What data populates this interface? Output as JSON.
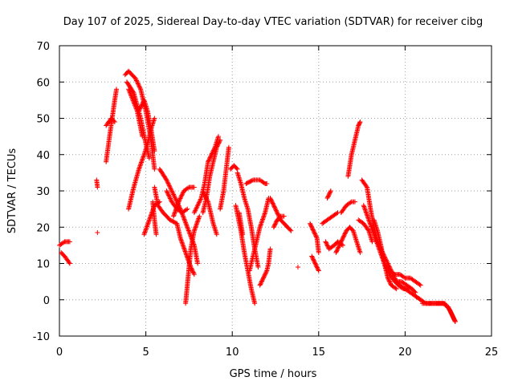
{
  "chart_data": {
    "type": "scatter",
    "title": "Day 107 of 2025, Sidereal Day-to-day VTEC variation (SDTVAR) for receiver cibg",
    "xlabel": "GPS time / hours",
    "ylabel": "SDTVAR / TECUs",
    "xlim": [
      0,
      25
    ],
    "ylim": [
      -10,
      70
    ],
    "xticks": [
      0,
      5,
      10,
      15,
      20,
      25
    ],
    "yticks": [
      -10,
      0,
      10,
      20,
      30,
      40,
      50,
      60,
      70
    ],
    "xtick_labels": [
      "0",
      "5",
      "10",
      "15",
      "20",
      "25"
    ],
    "ytick_labels": [
      "-10",
      "0",
      "10",
      "20",
      "30",
      "40",
      "50",
      "60",
      "70"
    ],
    "grid": true,
    "marker": "+",
    "series": [
      {
        "name": "SDTVAR",
        "color": "#ff0000",
        "tracks": [
          [
            [
              0.0,
              15
            ],
            [
              0.3,
              16
            ],
            [
              0.6,
              16
            ]
          ],
          [
            [
              0.1,
              13
            ],
            [
              0.3,
              12
            ],
            [
              0.6,
              10
            ]
          ],
          [
            [
              2.15,
              33
            ],
            [
              2.2,
              31
            ]
          ],
          [
            [
              2.2,
              18.5
            ]
          ],
          [
            [
              2.7,
              38
            ],
            [
              2.9,
              45
            ],
            [
              3.05,
              50
            ],
            [
              3.2,
              55
            ],
            [
              3.3,
              58
            ]
          ],
          [
            [
              2.7,
              48
            ],
            [
              3.0,
              50
            ],
            [
              3.2,
              49
            ]
          ],
          [
            [
              3.8,
              62
            ],
            [
              4.0,
              63
            ],
            [
              4.4,
              61
            ],
            [
              4.7,
              58
            ],
            [
              5.0,
              52
            ],
            [
              5.3,
              44
            ],
            [
              5.5,
              36
            ]
          ],
          [
            [
              3.9,
              60
            ],
            [
              4.3,
              57
            ],
            [
              4.7,
              50
            ],
            [
              5.0,
              43
            ],
            [
              5.2,
              39
            ]
          ],
          [
            [
              4.0,
              58
            ],
            [
              4.5,
              52
            ],
            [
              4.8,
              45
            ]
          ],
          [
            [
              4.6,
              52
            ],
            [
              4.9,
              55
            ],
            [
              5.1,
              52
            ],
            [
              5.3,
              47
            ],
            [
              5.5,
              41
            ]
          ],
          [
            [
              4.0,
              25
            ],
            [
              4.3,
              31
            ],
            [
              4.6,
              36
            ],
            [
              4.9,
              40
            ],
            [
              5.1,
              43
            ],
            [
              5.3,
              47
            ],
            [
              5.5,
              50
            ]
          ],
          [
            [
              4.9,
              18
            ],
            [
              5.2,
              22
            ],
            [
              5.5,
              26
            ],
            [
              5.8,
              27
            ]
          ],
          [
            [
              5.4,
              27
            ],
            [
              5.5,
              22
            ],
            [
              5.6,
              18
            ]
          ],
          [
            [
              5.5,
              31
            ],
            [
              5.7,
              26
            ],
            [
              6.0,
              24
            ],
            [
              6.4,
              22
            ],
            [
              6.8,
              21
            ],
            [
              7.0,
              17
            ],
            [
              7.3,
              13
            ],
            [
              7.6,
              9
            ],
            [
              7.8,
              7
            ]
          ],
          [
            [
              5.8,
              36
            ],
            [
              6.2,
              33
            ],
            [
              6.6,
              29
            ],
            [
              7.0,
              25
            ],
            [
              7.4,
              20
            ],
            [
              7.8,
              15
            ],
            [
              8.0,
              10
            ]
          ],
          [
            [
              6.2,
              30
            ],
            [
              6.5,
              27
            ],
            [
              6.8,
              25
            ],
            [
              7.1,
              24
            ],
            [
              7.4,
              25
            ]
          ],
          [
            [
              6.6,
              23
            ],
            [
              6.9,
              27
            ],
            [
              7.2,
              30
            ],
            [
              7.5,
              31
            ],
            [
              7.8,
              31
            ]
          ],
          [
            [
              7.3,
              -1
            ],
            [
              7.4,
              4
            ],
            [
              7.5,
              9
            ],
            [
              7.6,
              14
            ],
            [
              7.8,
              19
            ],
            [
              8.1,
              23
            ]
          ],
          [
            [
              7.8,
              24
            ],
            [
              8.2,
              28
            ],
            [
              8.4,
              32
            ],
            [
              8.6,
              38
            ],
            [
              8.8,
              40
            ],
            [
              9.0,
              42
            ],
            [
              9.2,
              45
            ]
          ],
          [
            [
              8.3,
              24
            ],
            [
              8.5,
              28
            ],
            [
              8.7,
              34
            ],
            [
              8.9,
              38
            ],
            [
              9.1,
              42
            ],
            [
              9.3,
              44
            ]
          ],
          [
            [
              8.3,
              30
            ],
            [
              8.6,
              27
            ],
            [
              8.9,
              21
            ],
            [
              9.1,
              18
            ]
          ],
          [
            [
              9.3,
              25
            ],
            [
              9.5,
              30
            ],
            [
              9.7,
              38
            ],
            [
              9.8,
              42
            ]
          ],
          [
            [
              9.9,
              36
            ],
            [
              10.1,
              37
            ],
            [
              10.3,
              36
            ]
          ],
          [
            [
              10.2,
              26
            ],
            [
              10.5,
              19
            ],
            [
              10.7,
              13
            ],
            [
              10.9,
              8
            ],
            [
              11.1,
              3
            ],
            [
              11.3,
              -1
            ]
          ],
          [
            [
              10.3,
              35
            ],
            [
              10.5,
              32
            ],
            [
              10.7,
              28
            ],
            [
              10.9,
              25
            ],
            [
              11.1,
              20
            ],
            [
              11.3,
              14
            ],
            [
              11.5,
              9
            ]
          ],
          [
            [
              10.4,
              24
            ],
            [
              10.5,
              21
            ],
            [
              10.6,
              18
            ]
          ],
          [
            [
              11.0,
              8
            ],
            [
              11.2,
              12
            ],
            [
              11.4,
              16
            ],
            [
              11.6,
              20
            ],
            [
              11.9,
              24
            ],
            [
              12.1,
              28
            ]
          ],
          [
            [
              10.8,
              32
            ],
            [
              11.2,
              33
            ],
            [
              11.6,
              33
            ],
            [
              11.9,
              32
            ],
            [
              12.0,
              32
            ]
          ],
          [
            [
              11.6,
              4
            ],
            [
              11.8,
              6
            ],
            [
              12.0,
              8
            ],
            [
              12.1,
              10
            ],
            [
              12.2,
              14
            ]
          ],
          [
            [
              12.2,
              28
            ],
            [
              12.4,
              26
            ],
            [
              12.6,
              24
            ],
            [
              12.8,
              22
            ],
            [
              13.0,
              21
            ],
            [
              13.2,
              20
            ],
            [
              13.4,
              19
            ]
          ],
          [
            [
              12.4,
              20
            ],
            [
              12.6,
              22
            ],
            [
              12.8,
              23
            ],
            [
              13.0,
              23
            ]
          ],
          [
            [
              13.8,
              9
            ]
          ],
          [
            [
              14.5,
              21
            ],
            [
              14.7,
              19
            ],
            [
              14.9,
              17
            ],
            [
              15.0,
              13
            ]
          ],
          [
            [
              14.6,
              12
            ],
            [
              14.8,
              10
            ],
            [
              15.0,
              8
            ]
          ],
          [
            [
              15.2,
              21
            ],
            [
              15.5,
              22
            ],
            [
              15.8,
              23
            ],
            [
              16.1,
              24
            ]
          ],
          [
            [
              15.5,
              28
            ],
            [
              15.7,
              30
            ]
          ],
          [
            [
              15.4,
              16
            ],
            [
              15.6,
              14
            ],
            [
              15.9,
              15
            ],
            [
              16.1,
              16
            ],
            [
              16.4,
              15
            ]
          ],
          [
            [
              16.0,
              13
            ],
            [
              16.2,
              15
            ],
            [
              16.4,
              17
            ],
            [
              16.6,
              19
            ],
            [
              16.8,
              20
            ],
            [
              17.0,
              19
            ],
            [
              17.2,
              16
            ],
            [
              17.4,
              13
            ]
          ],
          [
            [
              16.3,
              24
            ],
            [
              16.6,
              26
            ],
            [
              16.9,
              27
            ],
            [
              17.1,
              27
            ]
          ],
          [
            [
              16.7,
              34
            ],
            [
              16.8,
              37
            ],
            [
              16.9,
              40
            ],
            [
              17.0,
              42
            ],
            [
              17.1,
              44
            ],
            [
              17.2,
              46
            ],
            [
              17.3,
              48
            ],
            [
              17.4,
              49
            ]
          ],
          [
            [
              17.3,
              22
            ],
            [
              17.6,
              21
            ],
            [
              17.9,
              19
            ],
            [
              18.1,
              16
            ]
          ],
          [
            [
              17.5,
              33
            ],
            [
              17.8,
              31
            ],
            [
              18.0,
              25
            ],
            [
              18.2,
              20
            ],
            [
              18.4,
              16
            ],
            [
              18.7,
              13
            ],
            [
              19.0,
              10
            ],
            [
              19.3,
              7
            ],
            [
              19.6,
              4
            ],
            [
              19.9,
              3
            ],
            [
              20.2,
              3
            ]
          ],
          [
            [
              17.6,
              26
            ],
            [
              17.9,
              22
            ],
            [
              18.2,
              18
            ],
            [
              18.5,
              14
            ],
            [
              18.8,
              10
            ],
            [
              19.1,
              7
            ],
            [
              19.4,
              5
            ],
            [
              19.7,
              4
            ],
            [
              20.0,
              3
            ],
            [
              20.3,
              2
            ],
            [
              20.6,
              1
            ],
            [
              20.9,
              0
            ]
          ],
          [
            [
              18.2,
              22
            ],
            [
              18.4,
              19
            ],
            [
              18.6,
              15
            ],
            [
              18.8,
              10
            ],
            [
              19.0,
              6
            ],
            [
              19.2,
              4
            ],
            [
              19.5,
              3
            ]
          ],
          [
            [
              18.8,
              10
            ],
            [
              19.1,
              8
            ],
            [
              19.4,
              7
            ],
            [
              19.7,
              7
            ],
            [
              20.0,
              6
            ],
            [
              20.3,
              6
            ],
            [
              20.6,
              5
            ],
            [
              20.9,
              4
            ]
          ],
          [
            [
              19.5,
              5
            ],
            [
              19.8,
              5
            ],
            [
              20.1,
              4
            ],
            [
              20.4,
              3
            ],
            [
              20.6,
              2
            ]
          ],
          [
            [
              20.6,
              1
            ],
            [
              20.9,
              0
            ],
            [
              21.2,
              -1
            ],
            [
              21.5,
              -1
            ],
            [
              21.8,
              -1
            ],
            [
              22.0,
              -1
            ],
            [
              22.3,
              -1
            ],
            [
              22.6,
              -3
            ],
            [
              22.8,
              -5
            ],
            [
              22.9,
              -6
            ]
          ],
          [
            [
              21.0,
              -1
            ],
            [
              21.4,
              -1
            ],
            [
              21.9,
              -1
            ],
            [
              22.2,
              -1
            ],
            [
              22.5,
              -2
            ],
            [
              22.7,
              -4
            ],
            [
              22.9,
              -6
            ]
          ]
        ]
      }
    ]
  }
}
